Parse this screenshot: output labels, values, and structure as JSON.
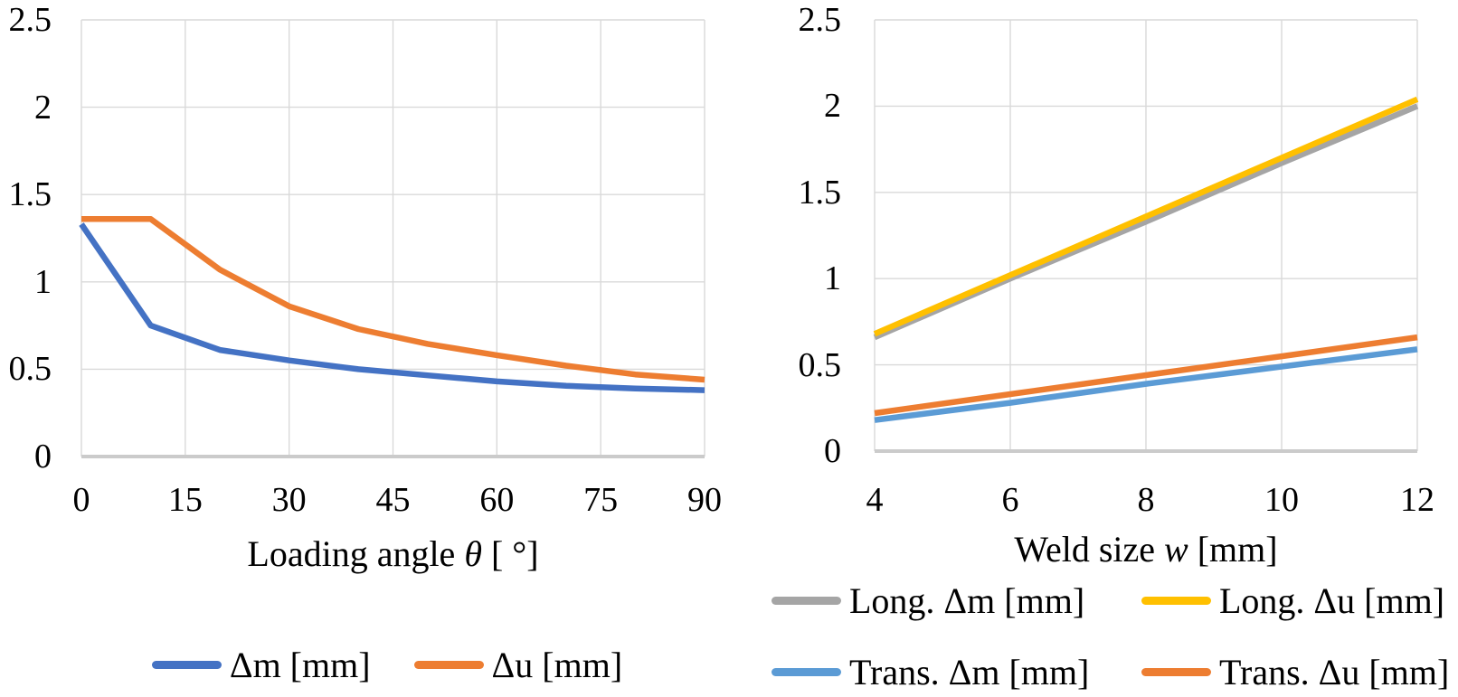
{
  "figure": {
    "background": "#ffffff",
    "text_color": "#000000",
    "gridline_color": "#D9D9D9",
    "axis_line_color": "#CBCBCB"
  },
  "chart_data": [
    {
      "type": "line",
      "title": "",
      "xlabel": "Loading angle θ [ °]",
      "xlabel_runs": [
        {
          "text": "Loading angle ",
          "italic": false
        },
        {
          "text": "θ",
          "italic": true
        },
        {
          "text": " [ °]",
          "italic": false
        }
      ],
      "ylabel": "",
      "x": [
        0,
        10,
        20,
        30,
        40,
        50,
        60,
        70,
        80,
        90
      ],
      "x_ticks": [
        0,
        15,
        30,
        45,
        60,
        75,
        90
      ],
      "x_tick_labels": [
        "0",
        "15",
        "30",
        "45",
        "60",
        "75",
        "90"
      ],
      "xlim": [
        0,
        90
      ],
      "y_ticks": [
        0,
        0.5,
        1,
        1.5,
        2,
        2.5
      ],
      "y_tick_labels": [
        "0",
        "0.5",
        "1",
        "1.5",
        "2",
        "2.5"
      ],
      "ylim": [
        0,
        2.5
      ],
      "grid": true,
      "legend_position": "bottom",
      "series": [
        {
          "name": "Δm [mm]",
          "color": "#4472C4",
          "values": [
            1.33,
            0.75,
            0.61,
            0.55,
            0.5,
            0.465,
            0.43,
            0.405,
            0.39,
            0.38
          ]
        },
        {
          "name": "Δu [mm]",
          "color": "#ED7D31",
          "values": [
            1.36,
            1.36,
            1.07,
            0.86,
            0.73,
            0.645,
            0.58,
            0.52,
            0.47,
            0.44
          ]
        }
      ]
    },
    {
      "type": "line",
      "title": "",
      "xlabel": "Weld size w [mm]",
      "xlabel_runs": [
        {
          "text": "Weld size ",
          "italic": false
        },
        {
          "text": "w",
          "italic": true
        },
        {
          "text": " [mm]",
          "italic": false
        }
      ],
      "ylabel": "",
      "x": [
        4,
        6,
        8,
        10,
        12
      ],
      "x_ticks": [
        4,
        6,
        8,
        10,
        12
      ],
      "x_tick_labels": [
        "4",
        "6",
        "8",
        "10",
        "12"
      ],
      "xlim": [
        4,
        12
      ],
      "y_ticks": [
        0,
        0.5,
        1,
        1.5,
        2,
        2.5
      ],
      "y_tick_labels": [
        "0",
        "0.5",
        "1",
        "1.5",
        "2",
        "2.5"
      ],
      "ylim": [
        0,
        2.5
      ],
      "grid": true,
      "legend_position": "bottom",
      "series": [
        {
          "name": "Long. Δm [mm]",
          "color": "#A5A5A5",
          "values": [
            0.66,
            1.0,
            1.33,
            1.67,
            2.0
          ]
        },
        {
          "name": "Long. Δu [mm]",
          "color": "#FFC000",
          "values": [
            0.68,
            1.02,
            1.36,
            1.7,
            2.04
          ]
        },
        {
          "name": "Trans. Δm [mm]",
          "color": "#5B9BD5",
          "values": [
            0.18,
            0.28,
            0.39,
            0.49,
            0.59
          ]
        },
        {
          "name": "Trans. Δu [mm]",
          "color": "#ED7D31",
          "values": [
            0.22,
            0.33,
            0.44,
            0.55,
            0.66
          ]
        }
      ]
    }
  ]
}
